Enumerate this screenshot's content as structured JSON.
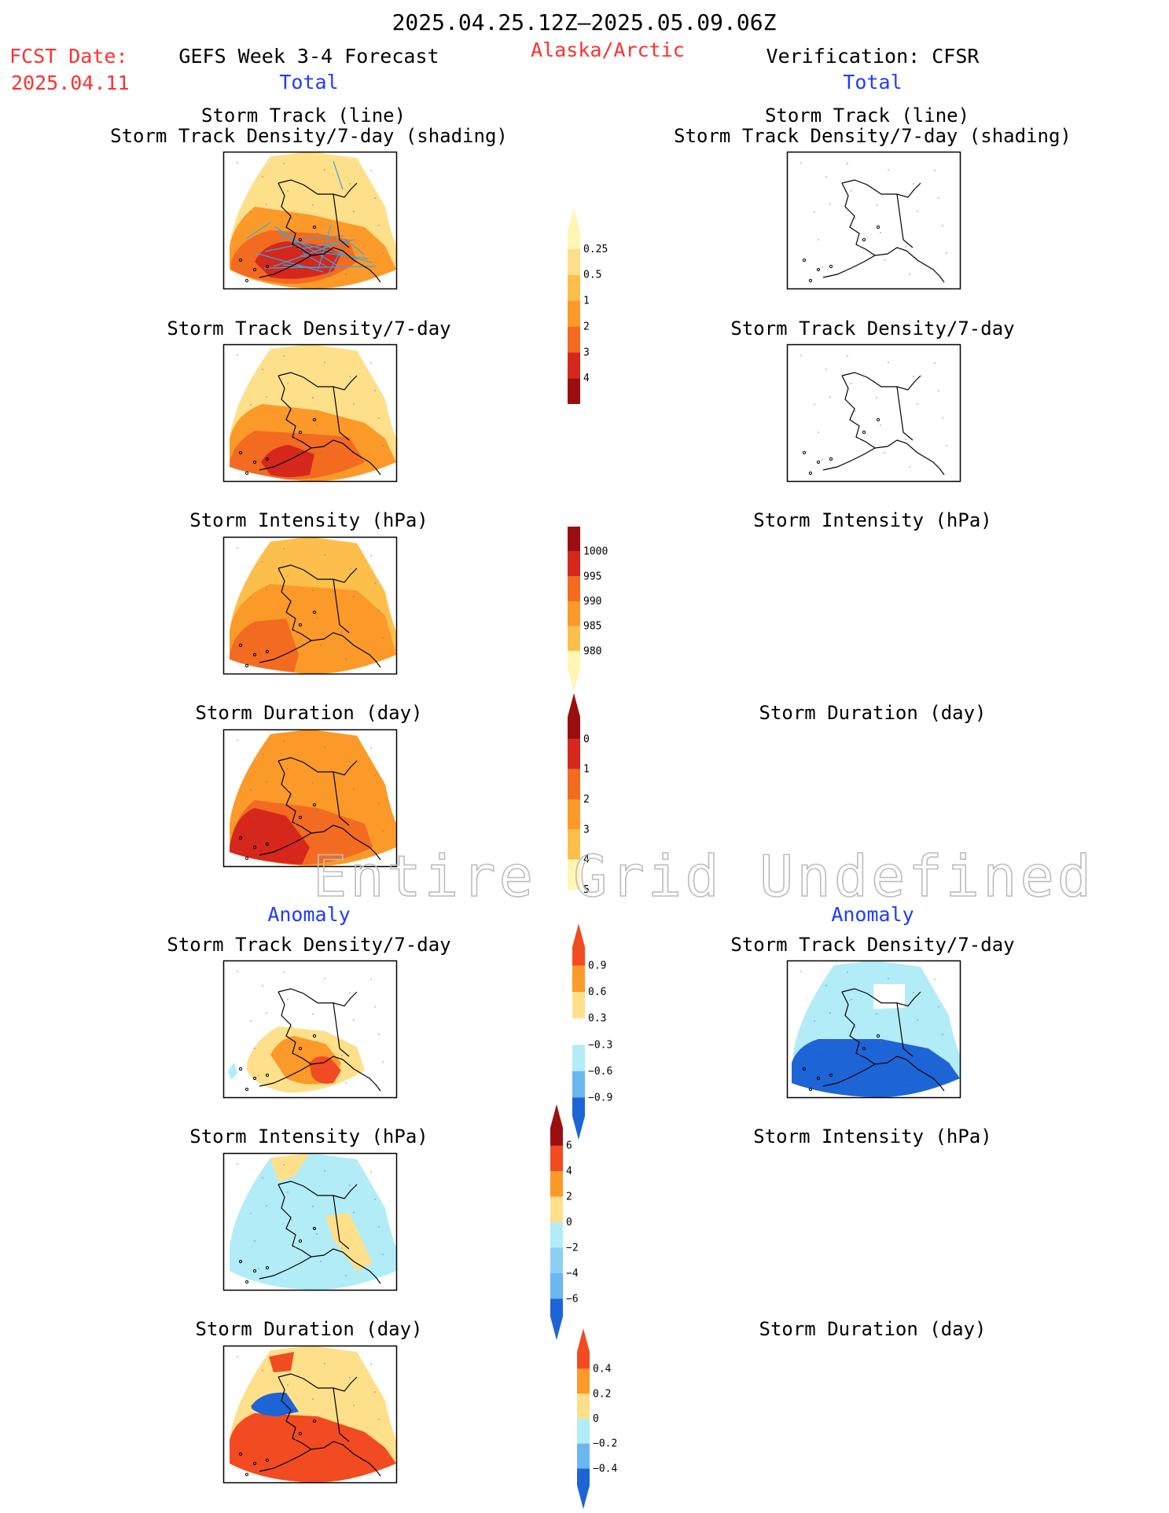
{
  "header": {
    "period": "2025.04.25.12Z–2025.05.09.06Z",
    "fcst_label": "FCST Date:",
    "fcst_date": "2025.04.11",
    "model": "GEFS Week 3-4 Forecast",
    "region": "Alaska/Arctic",
    "verification": "Verification: CFSR",
    "total_left": "Total",
    "total_right": "Total",
    "anomaly_left": "Anomaly",
    "anomaly_right": "Anomaly",
    "undefined_msg": "Entire Grid Undefined"
  },
  "titles": {
    "track_line": "Storm Track (line)",
    "track_shading": "Storm Track Density/7-day (shading)",
    "density": "Storm Track Density/7-day",
    "intensity": "Storm Intensity (hPa)",
    "duration": "Storm Duration (day)"
  },
  "colors": {
    "undefined_text": "#bbbbbb",
    "red_label": "#ff3030",
    "blue_label": "#1f3cff",
    "track_line": "#3aa8dc",
    "map_line": "#000000"
  },
  "chart_data": [
    {
      "type": "heatmap",
      "panel": "forecast-total-track",
      "title": [
        "Storm Track (line)",
        "Storm Track Density/7-day (shading)"
      ],
      "field": "storm track density per 7 days (shading) with storm tracks (lines)",
      "colorbar": {
        "ticks": [
          "0.25",
          "0.5",
          "1",
          "2",
          "3",
          "4"
        ],
        "colors": [
          "#fff6b4",
          "#fee08b",
          "#fdbf4b",
          "#fb9a29",
          "#f26b21",
          "#d5271b",
          "#9b0e10"
        ]
      }
    },
    {
      "type": "heatmap",
      "panel": "forecast-total-density",
      "title": "Storm Track Density/7-day",
      "colorbar": {
        "ticks": [
          "0.25",
          "0.5",
          "1",
          "2",
          "3",
          "4"
        ]
      }
    },
    {
      "type": "heatmap",
      "panel": "forecast-total-intensity",
      "title": "Storm Intensity (hPa)",
      "colorbar": {
        "ticks": [
          "1000",
          "995",
          "990",
          "985",
          "980"
        ],
        "colors": [
          "#fff6b4",
          "#fdbf4b",
          "#fb9a29",
          "#f26b21",
          "#d5271b",
          "#9b0e10"
        ]
      }
    },
    {
      "type": "heatmap",
      "panel": "forecast-total-duration",
      "title": "Storm Duration (day)",
      "colorbar": {
        "ticks": [
          "0",
          "1",
          "2",
          "3",
          "4",
          "5"
        ],
        "colors": [
          "#fff6b4",
          "#fdbf4b",
          "#fb9a29",
          "#f26b21",
          "#d5271b",
          "#9b0e10"
        ]
      }
    },
    {
      "type": "heatmap",
      "panel": "forecast-anomaly-density",
      "title": "Storm Track Density/7-day",
      "colorbar": {
        "ticks": [
          "0.9",
          "0.6",
          "0.3",
          "−0.3",
          "−0.6",
          "−0.9"
        ],
        "colors": [
          "#f24b21",
          "#fb9a29",
          "#fee08b",
          "#ffffff",
          "#b2ecf7",
          "#6cb6f0",
          "#1d64d6"
        ]
      }
    },
    {
      "type": "heatmap",
      "panel": "forecast-anomaly-intensity",
      "title": "Storm Intensity (hPa)",
      "colorbar": {
        "ticks": [
          "6",
          "4",
          "2",
          "0",
          "−2",
          "−4",
          "−6"
        ],
        "colors": [
          "#9b0e10",
          "#f24b21",
          "#fb9a29",
          "#fee08b",
          "#b2ecf7",
          "#8ccff4",
          "#6cb6f0",
          "#1d64d6"
        ]
      }
    },
    {
      "type": "heatmap",
      "panel": "forecast-anomaly-duration",
      "title": "Storm Duration (day)",
      "colorbar": {
        "ticks": [
          "0.4",
          "0.2",
          "0",
          "−0.2",
          "−0.4"
        ],
        "colors": [
          "#f24b21",
          "#fb9a29",
          "#fee08b",
          "#b2ecf7",
          "#6cb6f0",
          "#1d64d6"
        ]
      }
    },
    {
      "type": "heatmap",
      "panel": "verification-total-track",
      "title": [
        "Storm Track (line)",
        "Storm Track Density/7-day (shading)"
      ],
      "field": "no shading"
    },
    {
      "type": "heatmap",
      "panel": "verification-total-density",
      "title": "Storm Track Density/7-day",
      "field": "no shading"
    },
    {
      "type": "heatmap",
      "panel": "verification-anomaly-density",
      "title": "Storm Track Density/7-day",
      "field": "negative anomaly dominant (−0.6 to −0.9 over southern region, −0.3 to −0.6 north)"
    },
    {
      "type": "heatmap",
      "panel": "verification-intensity",
      "title": "Storm Intensity (hPa)",
      "field": "Entire Grid Undefined"
    },
    {
      "type": "heatmap",
      "panel": "verification-duration",
      "title": "Storm Duration (day)",
      "field": "Entire Grid Undefined"
    }
  ]
}
